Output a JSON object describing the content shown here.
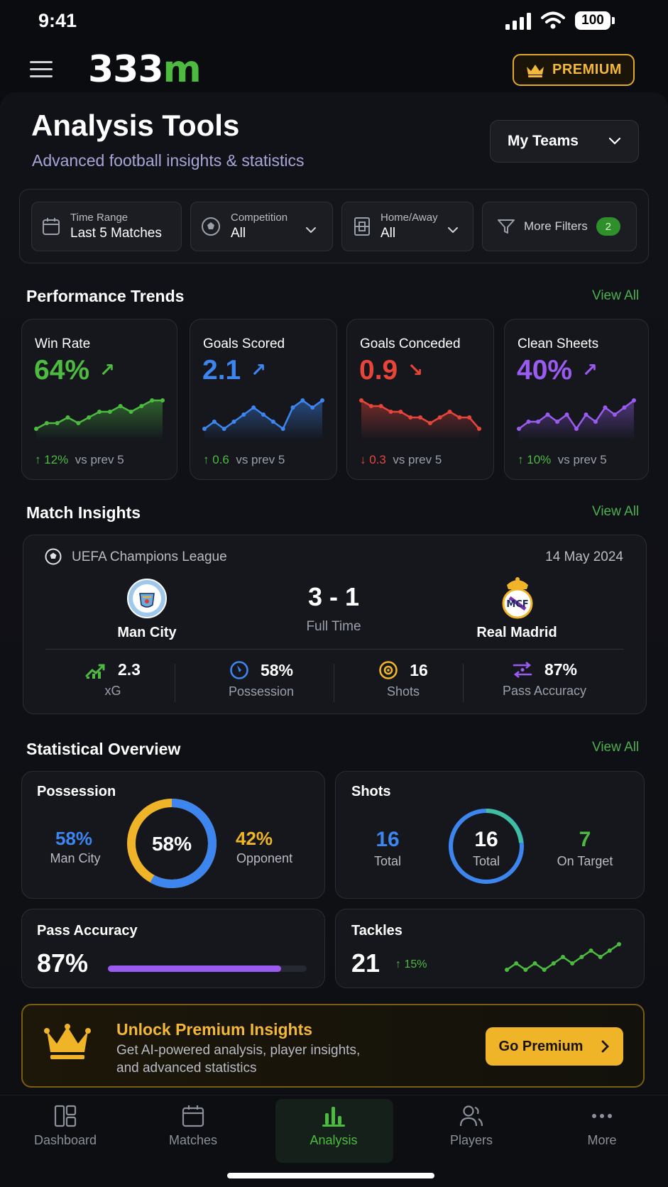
{
  "status_bar": {
    "time": "9:41",
    "battery": "100"
  },
  "header": {
    "logo_main": "333",
    "logo_accent": "m",
    "premium_label": "PREMIUM"
  },
  "page": {
    "title": "Analysis Tools",
    "subtitle": "Advanced football insights & statistics",
    "team_selector": "My Teams"
  },
  "filters": {
    "time_range": {
      "label": "Time Range",
      "value": "Last 5 Matches"
    },
    "competition": {
      "label": "Competition",
      "value": "All"
    },
    "home_away": {
      "label": "Home/Away",
      "value": "All"
    },
    "more_filters": {
      "label": "More Filters",
      "count": "2"
    }
  },
  "performance": {
    "title": "Performance Trends",
    "view_all": "View All",
    "cards": [
      {
        "label": "Win Rate",
        "value": "64%",
        "change": "12%",
        "compare": "vs prev 5",
        "color": "#4cbb3f",
        "direction": "up",
        "sparkline": [
          2,
          3,
          3,
          4,
          3,
          4,
          5,
          5,
          6,
          5,
          6,
          7,
          7
        ]
      },
      {
        "label": "Goals Scored",
        "value": "2.1",
        "change": "0.6",
        "compare": "vs prev 5",
        "color": "#3d86f0",
        "direction": "up",
        "sparkline": [
          3,
          4,
          3,
          4,
          5,
          6,
          5,
          4,
          3,
          6,
          7,
          6,
          7
        ]
      },
      {
        "label": "Goals Conceded",
        "value": "0.9",
        "change": "0.3",
        "compare": "vs prev 5",
        "color": "#e8443a",
        "direction": "down",
        "sparkline": [
          7,
          6,
          6,
          5,
          5,
          4,
          4,
          3,
          4,
          5,
          4,
          4,
          2
        ]
      },
      {
        "label": "Clean Sheets",
        "value": "40%",
        "change": "10%",
        "compare": "vs prev 5",
        "color": "#9a5cf0",
        "direction": "up",
        "sparkline": [
          3,
          4,
          4,
          5,
          4,
          5,
          3,
          5,
          4,
          6,
          5,
          6,
          7
        ]
      }
    ]
  },
  "insights": {
    "title": "Match Insights",
    "view_all": "View All",
    "competition": "UEFA Champions League",
    "date": "14 May 2024",
    "home_team": "Man City",
    "away_team": "Real Madrid",
    "score": "3 - 1",
    "status": "Full Time",
    "stats": [
      {
        "value": "2.3",
        "label": "xG",
        "icon": "trend-chart-icon",
        "color": "#4cbb3f"
      },
      {
        "value": "58%",
        "label": "Possession",
        "icon": "compass-icon",
        "color": "#3d86f0"
      },
      {
        "value": "16",
        "label": "Shots",
        "icon": "target-icon",
        "color": "#f0b429"
      },
      {
        "value": "87%",
        "label": "Pass Accuracy",
        "icon": "pass-icon",
        "color": "#9a5cf0"
      }
    ]
  },
  "overview": {
    "title": "Statistical Overview",
    "view_all": "View All",
    "possession": {
      "label": "Possession",
      "home_value": "58%",
      "home_label": "Man City",
      "center": "58%",
      "away_value": "42%",
      "away_label": "Opponent",
      "home_fraction": 0.58
    },
    "shots": {
      "label": "Shots",
      "total_value": "16",
      "total_label": "Total",
      "ring_value": "16",
      "ring_label": "Total",
      "target_value": "7",
      "target_label": "On Target"
    },
    "pass_accuracy": {
      "label": "Pass Accuracy",
      "value": "87%",
      "fraction": 0.87
    },
    "tackles": {
      "label": "Tackles",
      "value": "21",
      "change": "15%",
      "sparkline": [
        2,
        3,
        2,
        3,
        2,
        3,
        4,
        3,
        4,
        5,
        4,
        5,
        6
      ]
    }
  },
  "promo": {
    "title": "Unlock Premium Insights",
    "line1": "Get AI-powered analysis, player insights,",
    "line2": "and advanced statistics",
    "button": "Go Premium"
  },
  "nav": [
    {
      "label": "Dashboard",
      "icon": "dashboard-icon"
    },
    {
      "label": "Matches",
      "icon": "calendar-icon"
    },
    {
      "label": "Analysis",
      "icon": "bar-chart-icon"
    },
    {
      "label": "Players",
      "icon": "users-icon"
    },
    {
      "label": "More",
      "icon": "more-icon"
    }
  ]
}
